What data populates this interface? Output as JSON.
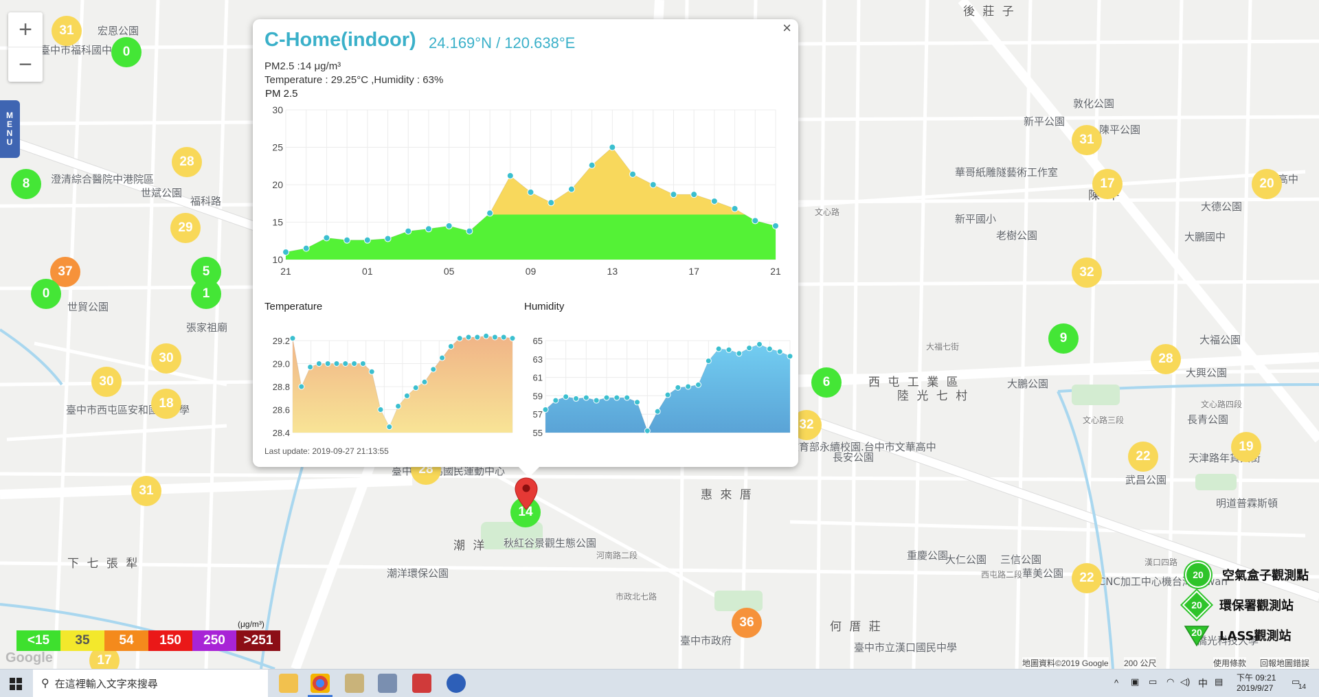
{
  "zoom_controls": {
    "zoom_in": "+",
    "zoom_out": "−"
  },
  "menu": {
    "letters": [
      "M",
      "E",
      "N",
      "U"
    ]
  },
  "map_labels": [
    {
      "text": "後 莊 子"
    },
    {
      "text": "宏恩公園"
    },
    {
      "text": "臺中市福科國中"
    },
    {
      "text": "澄清綜合醫院中港院區"
    },
    {
      "text": "世斌公園"
    },
    {
      "text": "福科路"
    },
    {
      "text": "世貿公園"
    },
    {
      "text": "張家祖廟"
    },
    {
      "text": "臺中市西屯區安和國民中學"
    },
    {
      "text": "下 七 張 犁"
    },
    {
      "text": "臺中市朝馬國民運動中心"
    },
    {
      "text": "潮 洋"
    },
    {
      "text": "秋紅谷景觀生態公園"
    },
    {
      "text": "潮洋環保公園"
    },
    {
      "text": "臺中市政府"
    },
    {
      "text": "惠 來 厝"
    },
    {
      "text": "西 屯 工 業 區"
    },
    {
      "text": "陸 光 七 村"
    },
    {
      "text": "大鵬公園"
    },
    {
      "text": "長安公園"
    },
    {
      "text": "教育部永續校園.台中市文華高中"
    },
    {
      "text": "重慶公園"
    },
    {
      "text": "大仁公園"
    },
    {
      "text": "何 厝 莊"
    },
    {
      "text": "臺中市立漢口國民中學"
    },
    {
      "text": "三信公園"
    },
    {
      "text": "華美公園"
    },
    {
      "text": "武昌公園"
    },
    {
      "text": "長青公園"
    },
    {
      "text": "天津路年貨大街"
    },
    {
      "text": "明道普霖斯頓"
    },
    {
      "text": "衛道高中"
    },
    {
      "text": "大德公園"
    },
    {
      "text": "大鵬國中"
    },
    {
      "text": "大福公園"
    },
    {
      "text": "大興公園"
    },
    {
      "text": "敦化公園"
    },
    {
      "text": "新平公園"
    },
    {
      "text": "陳平公園"
    },
    {
      "text": "陳 平"
    },
    {
      "text": "老樹公園"
    },
    {
      "text": "華哥紙雕隧藝術工作室"
    },
    {
      "text": "新平國小"
    },
    {
      "text": "2R CNC加工中心機台灣Taiwan"
    },
    {
      "text": "僑光科技大學"
    },
    {
      "text": "漢口四路"
    },
    {
      "text": "西屯路二段"
    },
    {
      "text": "文心路三段"
    },
    {
      "text": "文心路四段"
    },
    {
      "text": "市政北七路"
    },
    {
      "text": "河南路二段"
    },
    {
      "text": "大福七街"
    },
    {
      "text": "文心路"
    }
  ],
  "markers": [
    {
      "value": "31",
      "color": "#f8d858"
    },
    {
      "value": "0",
      "color": "#44e636"
    },
    {
      "value": "28",
      "color": "#f8d858"
    },
    {
      "value": "8",
      "color": "#44e636"
    },
    {
      "value": "29",
      "color": "#f8d858"
    },
    {
      "value": "37",
      "color": "#f6923a"
    },
    {
      "value": "5",
      "color": "#44e636"
    },
    {
      "value": "1",
      "color": "#44e636"
    },
    {
      "value": "0",
      "color": "#44e636"
    },
    {
      "value": "30",
      "color": "#f8d858"
    },
    {
      "value": "30",
      "color": "#f8d858"
    },
    {
      "value": "18",
      "color": "#f8d858"
    },
    {
      "value": "31",
      "color": "#f8d858"
    },
    {
      "value": "17",
      "color": "#f8d858"
    },
    {
      "value": "28",
      "color": "#f8d858"
    },
    {
      "value": "14",
      "color": "#44e636"
    },
    {
      "value": "36",
      "color": "#f6923a"
    },
    {
      "value": "6",
      "color": "#44e636"
    },
    {
      "value": "32",
      "color": "#f8d858"
    },
    {
      "value": "31",
      "color": "#f8d858"
    },
    {
      "value": "17",
      "color": "#f8d858"
    },
    {
      "value": "20",
      "color": "#f8d858"
    },
    {
      "value": "32",
      "color": "#f8d858"
    },
    {
      "value": "9",
      "color": "#44e636"
    },
    {
      "value": "28",
      "color": "#f8d858"
    },
    {
      "value": "22",
      "color": "#f8d858"
    },
    {
      "value": "19",
      "color": "#f8d858"
    },
    {
      "value": "22",
      "color": "#f8d858"
    }
  ],
  "popup": {
    "title": "C-Home(indoor)",
    "coordinates": "24.169°N / 120.638°E",
    "pm_line": "PM2.5 :14 μg/m³",
    "temp_humidity_line": "Temperature : 29.25°C ,Humidity : 63%",
    "close_label": "×",
    "last_update": "Last update: 2019-09-27 21:13:55"
  },
  "chart_data": [
    {
      "type": "area",
      "title": "PM 2.5",
      "x_tick_labels": [
        "21",
        "01",
        "05",
        "09",
        "13",
        "17",
        "21"
      ],
      "ylim": [
        10,
        30
      ],
      "y_ticks": [
        10,
        15,
        20,
        25,
        30
      ],
      "threshold": 16,
      "colors": {
        "below": "#54f236",
        "above": "#f8d85c",
        "points": "#3bbfcf"
      },
      "values": [
        11,
        11.5,
        12.9,
        12.6,
        12.6,
        12.8,
        13.8,
        14.1,
        14.5,
        13.8,
        16.2,
        21.2,
        19,
        17.6,
        19.4,
        22.6,
        25,
        21.4,
        20,
        18.7,
        18.7,
        17.8,
        16.8,
        15.2,
        14.5
      ]
    },
    {
      "type": "area",
      "title": "Temperature",
      "ylim": [
        28.4,
        29.2
      ],
      "y_ticks": [
        28.4,
        28.6,
        28.8,
        29.0,
        29.2
      ],
      "colors": {
        "top": "#f0b487",
        "bottom": "#f8e496",
        "points": "#3bbfcf"
      },
      "values": [
        29.22,
        28.8,
        28.97,
        29.0,
        29.0,
        29.0,
        29.0,
        29.0,
        29.0,
        28.93,
        28.6,
        28.45,
        28.63,
        28.72,
        28.79,
        28.84,
        28.95,
        29.05,
        29.15,
        29.22,
        29.23,
        29.23,
        29.24,
        29.23,
        29.23,
        29.22
      ]
    },
    {
      "type": "area",
      "title": "Humidity",
      "ylim": [
        55,
        65
      ],
      "y_ticks": [
        55,
        57,
        59,
        61,
        63,
        65
      ],
      "colors": {
        "top": "#72cdf1",
        "bottom": "#5aa3d6",
        "points": "#3bbfcf"
      },
      "values": [
        57.5,
        58.5,
        58.9,
        58.7,
        58.8,
        58.5,
        58.8,
        58.8,
        58.8,
        58.3,
        55.2,
        57.3,
        59.1,
        59.9,
        60.0,
        60.2,
        62.8,
        64.1,
        64.0,
        63.6,
        64.2,
        64.6,
        64.1,
        63.8,
        63.3
      ]
    }
  ],
  "pm_legend": {
    "unit": "(μg/m³)",
    "items": [
      {
        "label": "<15",
        "color": "#3ee02e"
      },
      {
        "label": "35",
        "color": "#f3e82c"
      },
      {
        "label": "54",
        "color": "#f48a1c"
      },
      {
        "label": "150",
        "color": "#ea1818"
      },
      {
        "label": "250",
        "color": "#a824d6"
      },
      {
        "label": ">251",
        "color": "#8c0e16"
      }
    ]
  },
  "station_legend": [
    {
      "label": "空氣盒子觀測點",
      "badge": "20",
      "shape": "circle"
    },
    {
      "label": "環保署觀測站",
      "badge": "20",
      "shape": "diamond"
    },
    {
      "label": "LASS觀測站",
      "badge": "20",
      "shape": "triangle"
    }
  ],
  "google_logo": "Google",
  "attribution": {
    "data": "地圖資料©2019 Google",
    "scale": "200 公尺",
    "terms": "使用條款",
    "report": "回報地圖錯誤"
  },
  "taskbar": {
    "search_placeholder": "在這裡輸入文字來搜尋",
    "time": "下午 09:21",
    "date": "2019/9/27",
    "ime": "中",
    "notification_count": "14"
  }
}
